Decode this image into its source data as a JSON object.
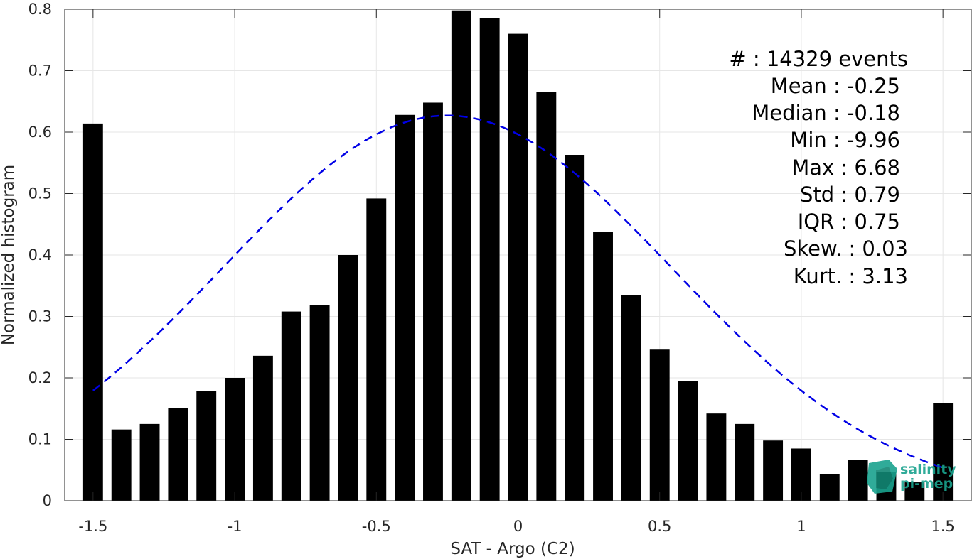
{
  "chart_data": {
    "type": "bar",
    "xlabel": "SAT - Argo (C2)",
    "ylabel": "Normalized histogram",
    "xlim": [
      -1.6,
      1.6
    ],
    "ylim": [
      0,
      0.8
    ],
    "xticks": [
      -1.5,
      -1,
      -0.5,
      0,
      0.5,
      1,
      1.5
    ],
    "xtick_labels": [
      "-1.5",
      "-1",
      "-0.5",
      "0",
      "0.5",
      "1",
      "1.5"
    ],
    "yticks": [
      0,
      0.1,
      0.2,
      0.3,
      0.4,
      0.5,
      0.6,
      0.7,
      0.8
    ],
    "ytick_labels": [
      "0",
      "0.1",
      "0.2",
      "0.3",
      "0.4",
      "0.5",
      "0.6",
      "0.7",
      "0.8"
    ],
    "grid": true,
    "bar_color": "#000000",
    "curve_color": "#0000e6",
    "bars": {
      "x": [
        -1.5,
        -1.4,
        -1.3,
        -1.2,
        -1.1,
        -1.0,
        -0.9,
        -0.8,
        -0.7,
        -0.6,
        -0.5,
        -0.4,
        -0.3,
        -0.2,
        -0.1,
        0.0,
        0.1,
        0.2,
        0.3,
        0.4,
        0.5,
        0.6,
        0.7,
        0.8,
        0.9,
        1.0,
        1.1,
        1.2,
        1.3,
        1.4,
        1.5
      ],
      "values": [
        0.614,
        0.116,
        0.125,
        0.151,
        0.179,
        0.2,
        0.236,
        0.308,
        0.319,
        0.4,
        0.492,
        0.628,
        0.648,
        0.798,
        0.786,
        0.76,
        0.665,
        0.563,
        0.438,
        0.335,
        0.246,
        0.195,
        0.142,
        0.125,
        0.098,
        0.085,
        0.043,
        0.066,
        0.047,
        0.03,
        0.159
      ]
    },
    "gaussian_fit": {
      "style": "dashed",
      "mean": -0.25,
      "std": 0.79,
      "peak": 0.627,
      "x_range": [
        -1.5,
        1.5
      ]
    }
  },
  "stats": [
    {
      "label": "#  : 14329 events"
    },
    {
      "label": "Mean : -0.25"
    },
    {
      "label": "Median : -0.18"
    },
    {
      "label": "Min : -9.96"
    },
    {
      "label": "Max : 6.68"
    },
    {
      "label": "Std : 0.79"
    },
    {
      "label": "IQR : 0.75"
    },
    {
      "label": "Skew. : 0.03"
    },
    {
      "label": "Kurt. : 3.13"
    }
  ],
  "logo": {
    "line1": "salinity",
    "line2": "pi-mep",
    "color": "#1aa38e"
  }
}
